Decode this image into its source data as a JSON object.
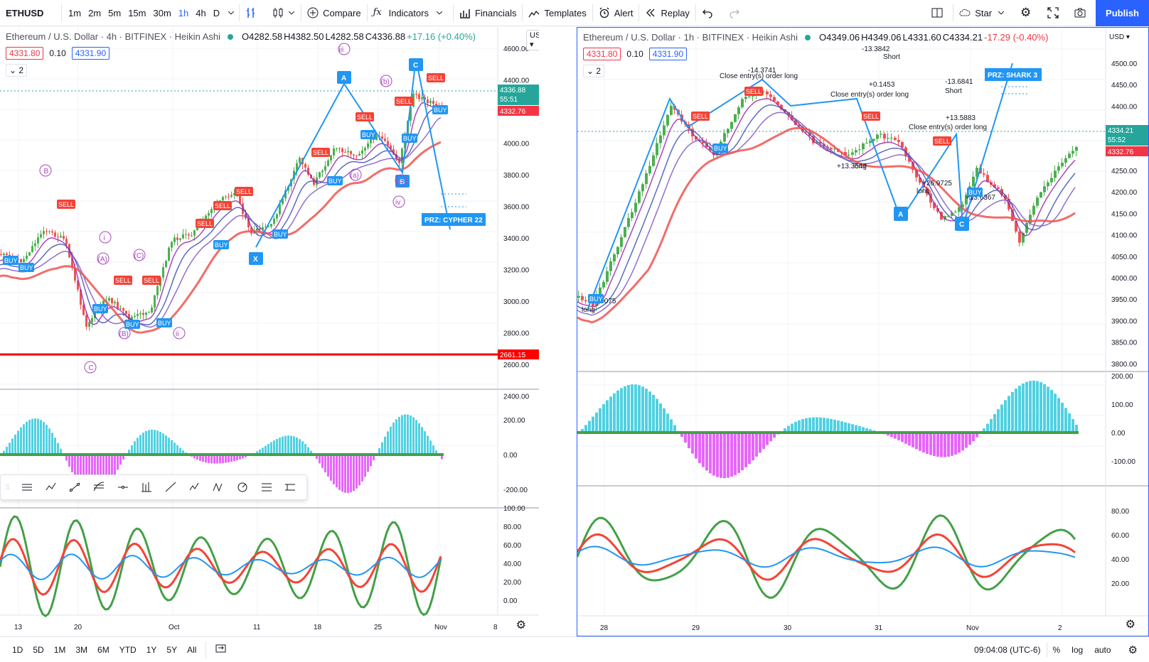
{
  "toolbar": {
    "symbol": "ETHUSD",
    "intervals": [
      "1m",
      "2m",
      "5m",
      "15m",
      "30m",
      "1h",
      "4h",
      "D"
    ],
    "active_interval": "1h",
    "compare": "Compare",
    "indicators": "Indicators",
    "financials": "Financials",
    "templates": "Templates",
    "alert": "Alert",
    "replay": "Replay",
    "star": "Star",
    "publish": "Publish"
  },
  "left": {
    "title": "Ethereum / U.S. Dollar · 4h · BITFINEX · Heikin Ashi",
    "o": "O4282.58",
    "h": "H4382.50",
    "l": "L4282.58",
    "c": "C4336.88",
    "chg": "+17.16 (+0.40%)",
    "bid": "4331.80",
    "spread": "0.10",
    "ask": "4331.90",
    "collapse": "2",
    "currency": "USD",
    "price_axis": [
      "4600.00",
      "4400.00",
      "4200.00",
      "4000.00",
      "3800.00",
      "3600.00",
      "3400.00",
      "3200.00",
      "3000.00",
      "2800.00",
      "2600.00",
      "2400.00"
    ],
    "price_tag": "4336.88",
    "price_tag2": "55:51",
    "price_tag3": "4332.76",
    "hline_tag": "2661.15",
    "osc1_axis": [
      "200.00",
      "0.00",
      "-200.00"
    ],
    "osc2_axis": [
      "100.00",
      "80.00",
      "60.00",
      "40.00",
      "20.00",
      "0.00"
    ],
    "x_labels": [
      "13",
      "20",
      "Oct",
      "11",
      "18",
      "25",
      "Nov",
      "8"
    ],
    "prz": "PRZ: CYPHER 22",
    "pattern_labels": [
      "A",
      "B",
      "C",
      "X"
    ],
    "wave_labels": [
      "iii",
      "iv",
      "ii",
      "i",
      "(a)",
      "(b)",
      "(c)",
      "(A)",
      "(B)",
      "(C)",
      "B",
      "C"
    ]
  },
  "right": {
    "title": "Ethereum / U.S. Dollar · 1h · BITFINEX · Heikin Ashi",
    "o": "O4349.06",
    "h": "H4349.06",
    "l": "L4331.60",
    "c": "C4334.21",
    "chg": "-17.29 (-0.40%)",
    "bid": "4331.80",
    "spread": "0.10",
    "ask": "4331.90",
    "collapse": "2",
    "currency": "USD",
    "price_axis": [
      "4500.00",
      "4450.00",
      "4400.00",
      "4350.00",
      "4300.00",
      "4250.00",
      "4200.00",
      "4150.00",
      "4100.00",
      "4050.00",
      "4000.00",
      "3950.00",
      "3900.00",
      "3850.00",
      "3800.00"
    ],
    "price_tag": "4334.21",
    "price_tag2": "55:52",
    "price_tag3": "4332.76",
    "osc1_axis": [
      "200.00",
      "100.00",
      "0.00",
      "-100.00"
    ],
    "osc2_axis": [
      "80.00",
      "60.00",
      "40.00",
      "20.00"
    ],
    "x_labels": [
      "28",
      "29",
      "30",
      "31",
      "Nov",
      "2"
    ],
    "prz": "PRZ: SHARK 3",
    "annotations": [
      "-14.3741",
      "Close entry(s) order long",
      "-13.3842",
      "Short",
      "+0.1453",
      "Close entry(s) order long",
      "-13.6841",
      "Short",
      "+13.5883",
      "Close entry(s) order long",
      "+13.3547",
      "long",
      "+26.9725",
      "long",
      "-28.0075",
      "long",
      "+13.6367"
    ]
  },
  "bottom": {
    "ranges": [
      "1D",
      "5D",
      "1M",
      "3M",
      "6M",
      "YTD",
      "1Y",
      "5Y",
      "All"
    ],
    "time": "09:04:08 (UTC-6)",
    "pct": "%",
    "log": "log",
    "auto": "auto"
  },
  "colors": {
    "accent": "#2962ff",
    "up": "#26a69a",
    "down": "#f23645",
    "hline": "#ff0000"
  }
}
